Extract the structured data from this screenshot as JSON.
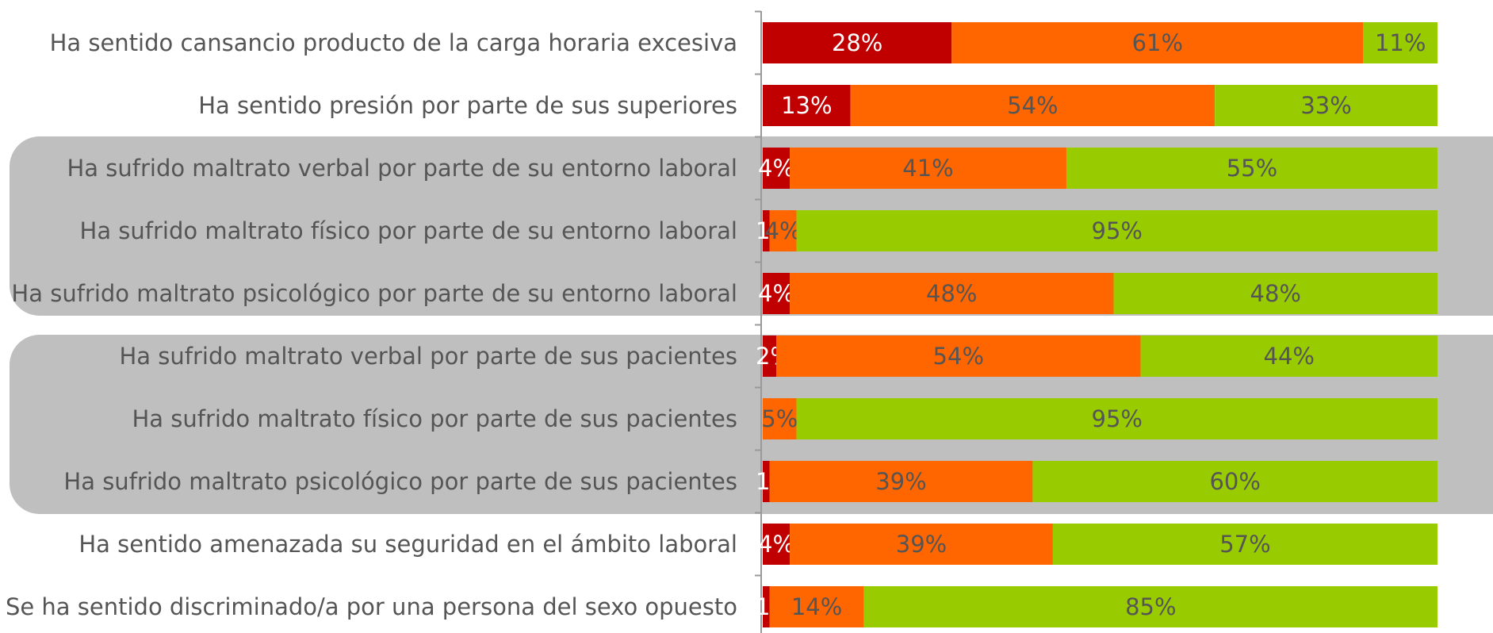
{
  "chart_data": {
    "type": "stacked-bar-horizontal",
    "categories": [
      "Ha sentido cansancio producto de la carga horaria excesiva",
      "Ha sentido presión por parte de sus superiores",
      "Ha sufrido maltrato verbal por parte de su entorno laboral",
      "Ha sufrido maltrato físico por parte de su entorno laboral",
      "Ha sufrido maltrato psicológico por parte de su entorno laboral",
      "Ha sufrido maltrato verbal por parte de sus pacientes",
      "Ha sufrido maltrato físico por parte de sus pacientes",
      "Ha sufrido maltrato psicológico por parte de sus pacientes",
      "Ha sentido amenazada su seguridad en el ámbito laboral",
      "Se ha sentido discriminado/a por una persona del sexo opuesto"
    ],
    "series": [
      {
        "color": "#c00000",
        "label_color": "#ffffff",
        "values": [
          28,
          13,
          4,
          1,
          4,
          2,
          0,
          1,
          4,
          1
        ],
        "value_labels": [
          "28%",
          "13%",
          "4%",
          "1%",
          "4%",
          "2%",
          null,
          "1%",
          "4%",
          "1%"
        ]
      },
      {
        "color": "#ff6600",
        "label_color": "#555555",
        "values": [
          61,
          54,
          41,
          4,
          48,
          54,
          5,
          39,
          39,
          14
        ],
        "value_labels": [
          "61%",
          "54%",
          "41%",
          "4%",
          "48%",
          "54%",
          "5%",
          "39%",
          "39%",
          "14%"
        ]
      },
      {
        "color": "#99cc00",
        "label_color": "#555555",
        "values": [
          11,
          33,
          55,
          95,
          48,
          44,
          95,
          60,
          57,
          85
        ],
        "value_labels": [
          "11%",
          "33%",
          "55%",
          "95%",
          "48%",
          "44%",
          "95%",
          "60%",
          "57%",
          "85%"
        ]
      }
    ],
    "xlim": [
      0,
      100
    ]
  }
}
